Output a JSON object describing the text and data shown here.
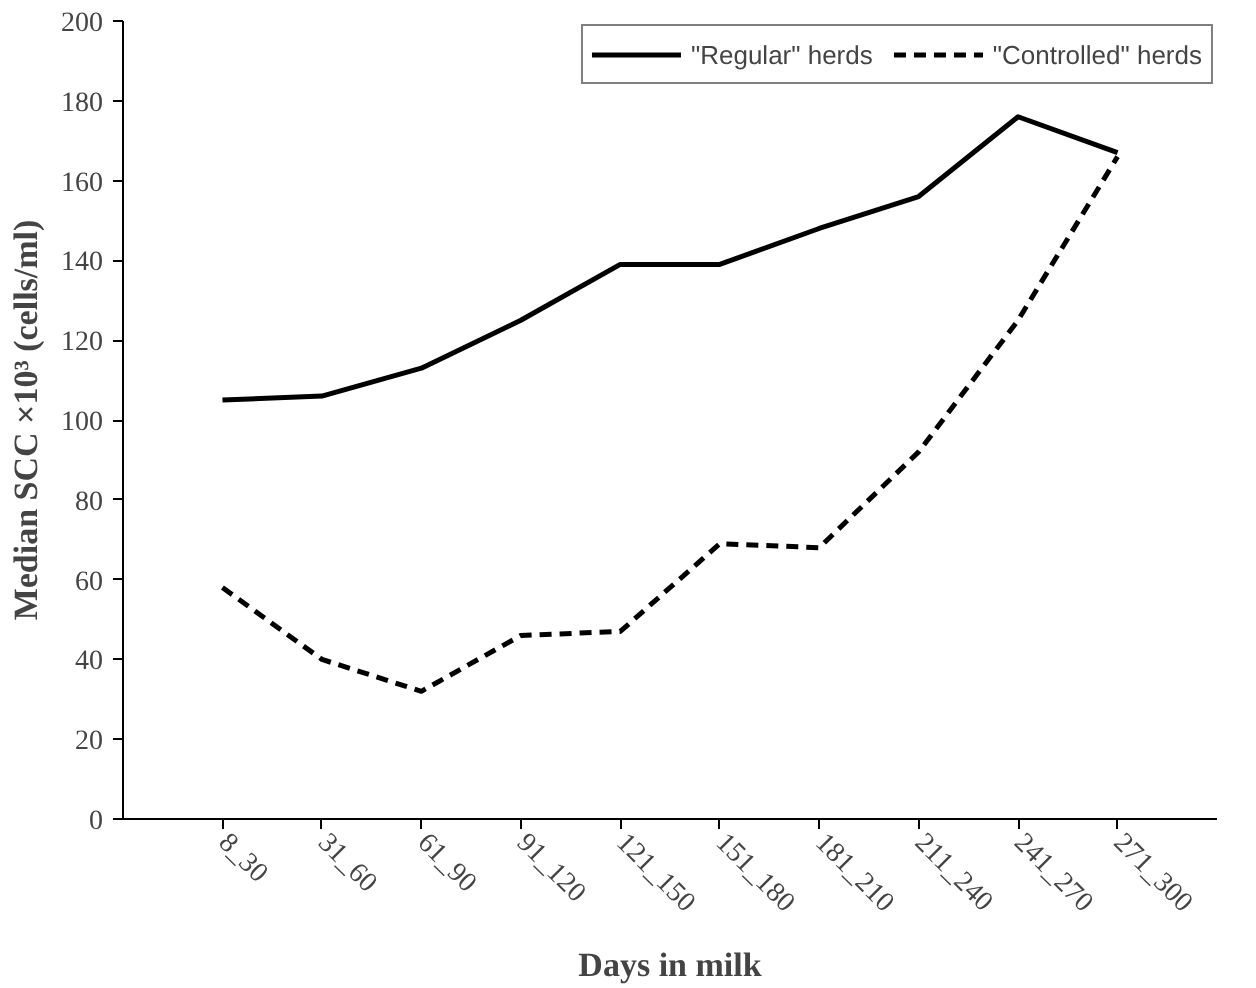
{
  "chart_data": {
    "type": "line",
    "xlabel": "Days in milk",
    "ylabel": "Median SCC ×10³ (cells/ml)",
    "categories": [
      "8_30",
      "31_60",
      "61_90",
      "91_120",
      "121_150",
      "151_180",
      "181_210",
      "211_240",
      "241_270",
      "271_300"
    ],
    "series": [
      {
        "name": "\"Regular\" herds",
        "color": "#000000",
        "line_style": "solid",
        "values": [
          105,
          106,
          113,
          125,
          139,
          139,
          148,
          156,
          176,
          167
        ]
      },
      {
        "name": "\"Controlled\" herds",
        "color": "#000000",
        "line_style": "dashed",
        "values": [
          58,
          40,
          32,
          46,
          47,
          69,
          68,
          92,
          125,
          166
        ]
      }
    ],
    "ylim": [
      0,
      200
    ],
    "yticks": [
      0,
      20,
      40,
      60,
      80,
      100,
      120,
      140,
      160,
      180,
      200
    ],
    "grid": false,
    "legend": "top right",
    "marker": "none"
  }
}
